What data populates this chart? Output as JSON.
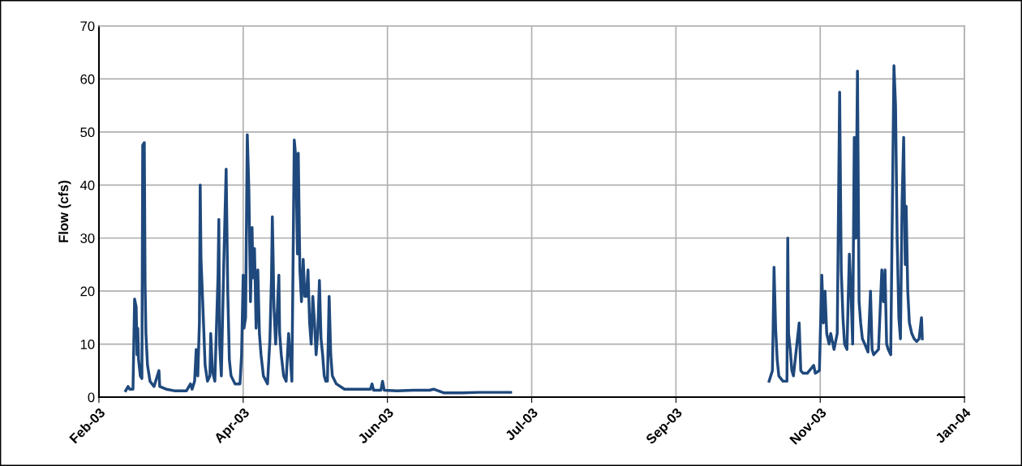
{
  "chart_data": {
    "type": "line",
    "ylabel": "Flow (cfs)",
    "color": "#1f497d",
    "grid": true,
    "marker": "none",
    "line_style": "solid",
    "xlim": [
      "2003-02-01",
      "2004-01-27"
    ],
    "ylim": [
      0,
      70
    ],
    "yticks": [
      0,
      10,
      20,
      30,
      40,
      50,
      60,
      70
    ],
    "xticks": [
      {
        "value": "2003-02-01",
        "label": "Feb-03"
      },
      {
        "value": "2003-04-02",
        "label": "Apr-03"
      },
      {
        "value": "2003-06-01",
        "label": "Jun-03"
      },
      {
        "value": "2003-07-31",
        "label": "Jul-03"
      },
      {
        "value": "2003-09-29",
        "label": "Sep-03"
      },
      {
        "value": "2003-11-28",
        "label": "Nov-03"
      },
      {
        "value": "2004-01-27",
        "label": "Jan-04"
      }
    ],
    "x": [
      "2003-02-12T03:00",
      "2003-02-13T03:00",
      "2003-02-13T19:00",
      "2003-02-15T04:00",
      "2003-02-15T20:00",
      "2003-02-16T12:00",
      "2003-02-16T20:00",
      "2003-02-17T04:00",
      "2003-02-17T12:00",
      "2003-02-18T05:00",
      "2003-02-18T21:00",
      "2003-02-19T05:00",
      "2003-02-19T21:00",
      "2003-02-20T05:00",
      "2003-02-20T13:00",
      "2003-02-21T05:00",
      "2003-02-22T06:00",
      "2003-02-23T22:00",
      "2003-02-25T23:00",
      "2003-02-26T07:00",
      "2003-02-28T23:00",
      "2003-03-04T08:00",
      "2003-03-09T10:00",
      "2003-03-11T02:00",
      "2003-03-11T18:00",
      "2003-03-12T19:00",
      "2003-03-13T11:00",
      "2003-03-14T03:00",
      "2003-03-14T19:00",
      "2003-03-15T03:00",
      "2003-03-15T11:00",
      "2003-03-16T04:00",
      "2003-03-17T04:00",
      "2003-03-18T04:00",
      "2003-03-19T04:00",
      "2003-03-19T12:00",
      "2003-03-20T05:00",
      "2003-03-21T05:00",
      "2003-03-22T13:00",
      "2003-03-22T21:00",
      "2003-03-23T05:00",
      "2003-03-23T22:00",
      "2003-03-24T22:00",
      "2003-03-25T22:00",
      "2003-03-26T14:00",
      "2003-03-27T06:00",
      "2003-03-27T23:00",
      "2003-03-29T15:00",
      "2003-03-31T16:00",
      "2003-04-01T08:00",
      "2003-04-02T00:00",
      "2003-04-02T08:00",
      "2003-04-03T00:00",
      "2003-04-03T17:00",
      "2003-04-04T09:00",
      "2003-04-05T01:00",
      "2003-04-05T17:00",
      "2003-04-06T01:00",
      "2003-04-06T17:00",
      "2003-04-07T09:00",
      "2003-04-08T02:00",
      "2003-04-08T18:00",
      "2003-04-09T10:00",
      "2003-04-10T10:00",
      "2003-04-12T03:00",
      "2003-04-13T03:00",
      "2003-04-13T19:00",
      "2003-04-14T03:00",
      "2003-04-14T11:00",
      "2003-04-14T19:00",
      "2003-04-15T12:00",
      "2003-04-16T04:00",
      "2003-04-16T20:00",
      "2003-04-17T04:00",
      "2003-04-17T20:00",
      "2003-04-18T20:00",
      "2003-04-19T21:00",
      "2003-04-20T21:00",
      "2003-04-21T13:00",
      "2003-04-22T06:00",
      "2003-04-23T06:00",
      "2003-04-23T22:00",
      "2003-04-24T14:00",
      "2003-04-24T22:00",
      "2003-04-25T14:00",
      "2003-04-26T06:00",
      "2003-04-26T23:00",
      "2003-04-27T15:00",
      "2003-04-28T07:00",
      "2003-04-28T23:00",
      "2003-04-29T15:00",
      "2003-04-30T07:00",
      "2003-04-30T23:00",
      "2003-05-01T16:00",
      "2003-05-02T08:00",
      "2003-05-03T00:00",
      "2003-05-03T17:00",
      "2003-05-04T09:00",
      "2003-05-05T01:00",
      "2003-05-05T17:00",
      "2003-05-06T09:00",
      "2003-05-07T01:00",
      "2003-05-07T18:00",
      "2003-05-08T10:00",
      "2003-05-09T02:00",
      "2003-05-10T18:00",
      "2003-05-14T03:00",
      "2003-05-19T05:00",
      "2003-05-24T22:00",
      "2003-05-25T14:00",
      "2003-05-26T06:00",
      "2003-05-29T07:00",
      "2003-05-29T23:00",
      "2003-05-30T16:00",
      "2003-06-05T01:00",
      "2003-06-11T19:00",
      "2003-06-18T13:00",
      "2003-06-20T05:00",
      "2003-06-24T14:00",
      "2003-07-02T00:00",
      "2003-07-08T18:00",
      "2003-07-15T12:00",
      "2003-07-22T06:00",
      "2003-09-15T00:00",
      "2003-11-06T18:00",
      "2003-11-08T03:00",
      "2003-11-08T11:00",
      "2003-11-08T19:00",
      "2003-11-09T11:00",
      "2003-11-10T03:00",
      "2003-11-10T19:00",
      "2003-11-12T12:00",
      "2003-11-14T04:00",
      "2003-11-14T12:00",
      "2003-11-14T20:00",
      "2003-11-15T13:00",
      "2003-11-16T05:00",
      "2003-11-16T21:00",
      "2003-11-19T06:00",
      "2003-11-19T22:00",
      "2003-11-20T22:00",
      "2003-11-22T15:00",
      "2003-11-25T07:00",
      "2003-11-25T23:00",
      "2003-11-27T16:00",
      "2003-11-28T16:00",
      "2003-11-29T08:00",
      "2003-11-30T00:00",
      "2003-11-30T17:00",
      "2003-12-01T17:00",
      "2003-12-02T09:00",
      "2003-12-03T18:00",
      "2003-12-05T02:00",
      "2003-12-06T02:00",
      "2003-12-06T18:00",
      "2003-12-07T11:00",
      "2003-12-08T03:00",
      "2003-12-09T03:00",
      "2003-12-10T03:00",
      "2003-12-10T19:00",
      "2003-12-11T12:00",
      "2003-12-12T04:00",
      "2003-12-12T20:00",
      "2003-12-13T12:00",
      "2003-12-14T04:00",
      "2003-12-14T20:00",
      "2003-12-15T13:00",
      "2003-12-16T13:00",
      "2003-12-17T21:00",
      "2003-12-18T22:00",
      "2003-12-19T14:00",
      "2003-12-20T06:00",
      "2003-12-21T06:00",
      "2003-12-22T06:00",
      "2003-12-23T15:00",
      "2003-12-24T07:00",
      "2003-12-24T23:00",
      "2003-12-25T15:00",
      "2003-12-26T07:00",
      "2003-12-27T08:00",
      "2003-12-28T16:00",
      "2003-12-29T08:00",
      "2003-12-30T00:00",
      "2003-12-30T17:00",
      "2003-12-31T09:00",
      "2004-01-01T01:00",
      "2004-01-01T17:00",
      "2004-01-02T09:00",
      "2004-01-02T18:00",
      "2004-01-03T10:00",
      "2004-01-04T02:00",
      "2004-01-05T02:00",
      "2004-01-06T02:00",
      "2004-01-07T03:00",
      "2004-01-08T03:00",
      "2004-01-09T03:00",
      "2004-01-09T11:00"
    ],
    "values": [
      1.2,
      2,
      1.5,
      1.5,
      18.5,
      17,
      8,
      13,
      7,
      4,
      3.5,
      47.5,
      48,
      21,
      12,
      6,
      3,
      2,
      5,
      2,
      1.5,
      1.2,
      1.2,
      2.5,
      1.5,
      3,
      9,
      4,
      14,
      40,
      26,
      18,
      6,
      3,
      4,
      12,
      5,
      3,
      23,
      33.5,
      10,
      4,
      25,
      43,
      20,
      7,
      4,
      2.5,
      2.5,
      8,
      23,
      13,
      15,
      49.5,
      39,
      18,
      32,
      22.5,
      28,
      13,
      24,
      12,
      8,
      4,
      2.5,
      11,
      23,
      34,
      26,
      17,
      10,
      16,
      23,
      12,
      8,
      4,
      3,
      12,
      8,
      3,
      48.5,
      45,
      27,
      46,
      24,
      18,
      26,
      19,
      19,
      24,
      14,
      10,
      19,
      14,
      8,
      12,
      22,
      11,
      8,
      4,
      3,
      3,
      19,
      8,
      4,
      2.5,
      1.5,
      1.5,
      1.5,
      2.5,
      1.3,
      1.3,
      3,
      1.3,
      1.2,
      1.3,
      1.3,
      1.5,
      0.8,
      0.8,
      0.9,
      0.9,
      0.9,
      null,
      3,
      5,
      14,
      24.5,
      13,
      7,
      4,
      3,
      3,
      30,
      12,
      9,
      5,
      4,
      14,
      5,
      4.5,
      4.5,
      6,
      4.5,
      5,
      23,
      14,
      20,
      12,
      10,
      12,
      9,
      12,
      57.5,
      24,
      15,
      10,
      9,
      27,
      20,
      10,
      49,
      30,
      61.5,
      18,
      14,
      11,
      10,
      8.5,
      20,
      9,
      8,
      8.5,
      9,
      24,
      18,
      24,
      10,
      9,
      8,
      62.5,
      55,
      30,
      15,
      11,
      36.5,
      49,
      25,
      36,
      20,
      14,
      12,
      11,
      10.5,
      11,
      15,
      11
    ]
  }
}
